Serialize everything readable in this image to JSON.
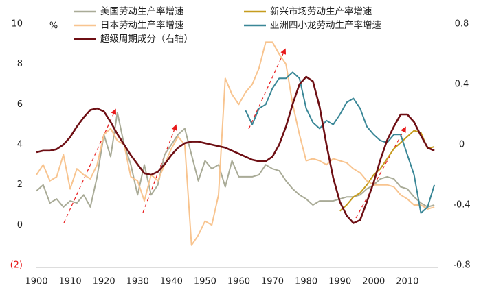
{
  "chart_data": {
    "type": "line",
    "y_unit_label": "%",
    "negative_tick_color": "#e8191a",
    "xlim": [
      1900,
      2019
    ],
    "xticks": [
      1900,
      1910,
      1920,
      1930,
      1940,
      1950,
      1960,
      1970,
      1980,
      1990,
      2000,
      2010
    ],
    "ylim": [
      -2,
      10
    ],
    "yticks": [
      {
        "value": -2,
        "label": "(2)"
      },
      0,
      2,
      4,
      6,
      8,
      10
    ],
    "y2lim": [
      -0.8,
      0.8
    ],
    "y2ticks": [
      -0.8,
      -0.4,
      0,
      0.4,
      0.8
    ],
    "x": [
      1900,
      1902,
      1904,
      1906,
      1908,
      1910,
      1912,
      1914,
      1916,
      1918,
      1920,
      1922,
      1924,
      1926,
      1928,
      1930,
      1932,
      1934,
      1936,
      1938,
      1940,
      1942,
      1944,
      1946,
      1948,
      1950,
      1952,
      1954,
      1956,
      1958,
      1960,
      1962,
      1964,
      1966,
      1968,
      1970,
      1972,
      1974,
      1976,
      1978,
      1980,
      1982,
      1984,
      1986,
      1988,
      1990,
      1992,
      1994,
      1996,
      1998,
      2000,
      2002,
      2004,
      2006,
      2008,
      2010,
      2012,
      2014,
      2016,
      2018
    ],
    "series": [
      {
        "name": "美国劳动生产率增速",
        "color": "#a9ab97",
        "values": [
          1.7,
          2.0,
          1.1,
          1.3,
          0.9,
          1.2,
          1.1,
          1.5,
          0.9,
          2.4,
          4.5,
          3.4,
          5.6,
          4.0,
          3.0,
          1.5,
          3.0,
          1.5,
          2.0,
          3.5,
          4.0,
          4.5,
          4.8,
          3.5,
          2.2,
          3.2,
          2.8,
          3.0,
          1.9,
          3.2,
          2.4,
          2.4,
          2.4,
          2.5,
          3.0,
          2.8,
          2.7,
          2.2,
          1.8,
          1.5,
          1.3,
          1.0,
          1.2,
          1.2,
          1.2,
          1.3,
          1.4,
          1.4,
          1.5,
          1.8,
          2.0,
          2.3,
          2.4,
          2.3,
          1.9,
          1.8,
          1.4,
          1.1,
          0.9,
          1.0
        ]
      },
      {
        "name": "新兴市场劳动生产率增速",
        "color": "#c69c1e",
        "values": [
          null,
          null,
          null,
          null,
          null,
          null,
          null,
          null,
          null,
          null,
          null,
          null,
          null,
          null,
          null,
          null,
          null,
          null,
          null,
          null,
          null,
          null,
          null,
          null,
          null,
          null,
          null,
          null,
          null,
          null,
          null,
          null,
          null,
          null,
          null,
          null,
          null,
          null,
          null,
          null,
          null,
          null,
          null,
          null,
          null,
          0.7,
          1.0,
          1.4,
          1.6,
          2.0,
          2.5,
          2.8,
          3.3,
          3.8,
          4.1,
          4.4,
          4.7,
          4.6,
          3.8,
          3.9
        ]
      },
      {
        "name": "日本劳动生产率增速",
        "color": "#f8c48f",
        "values": [
          2.5,
          3.0,
          2.2,
          2.4,
          3.5,
          1.8,
          2.8,
          2.5,
          2.3,
          3.0,
          4.5,
          4.8,
          4.2,
          4.0,
          2.4,
          2.2,
          1.2,
          2.5,
          2.2,
          3.0,
          3.8,
          4.4,
          4.0,
          -1.0,
          -0.5,
          0.2,
          0.0,
          1.5,
          7.3,
          6.5,
          6.0,
          6.6,
          7.0,
          7.8,
          9.1,
          9.1,
          8.5,
          8.0,
          6.0,
          4.5,
          3.2,
          3.3,
          3.2,
          3.0,
          3.3,
          3.2,
          3.1,
          2.8,
          2.6,
          2.2,
          2.0,
          2.0,
          2.0,
          1.9,
          1.5,
          1.3,
          1.0,
          1.0,
          0.8,
          0.9
        ]
      },
      {
        "name": "亚洲四小龙劳动生产率增速",
        "color": "#3a8797",
        "values": [
          null,
          null,
          null,
          null,
          null,
          null,
          null,
          null,
          null,
          null,
          null,
          null,
          null,
          null,
          null,
          null,
          null,
          null,
          null,
          null,
          null,
          null,
          null,
          null,
          null,
          null,
          null,
          null,
          null,
          null,
          null,
          5.7,
          5.0,
          5.8,
          6.0,
          6.8,
          7.3,
          7.3,
          7.6,
          7.3,
          5.8,
          5.1,
          4.8,
          5.2,
          5.0,
          5.5,
          6.1,
          6.3,
          5.8,
          4.9,
          4.5,
          4.2,
          4.1,
          4.5,
          4.5,
          3.5,
          2.5,
          0.6,
          0.9,
          2.0
        ]
      },
      {
        "name": "超级周期成分（右轴）",
        "color": "#6e0f14",
        "axis": "y2",
        "values": [
          -0.05,
          -0.04,
          -0.04,
          -0.03,
          0.0,
          0.05,
          0.12,
          0.18,
          0.23,
          0.24,
          0.22,
          0.15,
          0.07,
          0.0,
          -0.07,
          -0.13,
          -0.19,
          -0.2,
          -0.18,
          -0.13,
          -0.07,
          -0.02,
          0.01,
          0.02,
          0.02,
          0.01,
          0.0,
          -0.01,
          -0.02,
          -0.04,
          -0.06,
          -0.08,
          -0.1,
          -0.11,
          -0.11,
          -0.08,
          0.0,
          0.12,
          0.27,
          0.4,
          0.45,
          0.42,
          0.25,
          0.0,
          -0.22,
          -0.38,
          -0.47,
          -0.52,
          -0.5,
          -0.38,
          -0.25,
          -0.1,
          0.03,
          0.12,
          0.2,
          0.2,
          0.15,
          0.06,
          -0.02,
          -0.04
        ]
      }
    ]
  }
}
